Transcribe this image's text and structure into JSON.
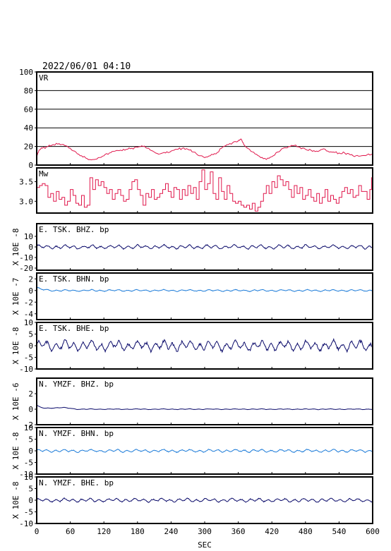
{
  "title": "2022/06/01  04:10",
  "colors": {
    "vr": "#e0184c",
    "mw": "#e0184c",
    "dark": "#0a0a6a",
    "light": "#1a7ad8"
  },
  "chart_data": {
    "type": "line",
    "xlabel": "SEC",
    "xlim": [
      0,
      600
    ],
    "xticks": [
      "0",
      "60",
      "120",
      "180",
      "240",
      "300",
      "360",
      "420",
      "480",
      "540",
      "600"
    ],
    "panels": [
      {
        "name": "VR",
        "label": "VR",
        "ylim": [
          0,
          100
        ],
        "grid": true,
        "yticks": [
          "0",
          "20",
          "40",
          "60",
          "80",
          "100"
        ],
        "ytickvals": [
          0,
          20,
          40,
          60,
          80,
          100
        ],
        "scale_label": "",
        "color": "vr",
        "x": [
          0,
          4,
          10,
          20,
          30,
          40,
          50,
          60,
          70,
          80,
          90,
          100,
          110,
          120,
          130,
          140,
          150,
          160,
          170,
          180,
          190,
          200,
          210,
          220,
          230,
          240,
          250,
          260,
          270,
          280,
          290,
          300,
          310,
          320,
          330,
          340,
          350,
          360,
          365,
          370,
          380,
          390,
          400,
          410,
          420,
          430,
          440,
          450,
          460,
          470,
          480,
          490,
          500,
          510,
          520,
          530,
          540,
          550,
          560,
          570,
          580,
          590,
          600
        ],
        "values": [
          10,
          16,
          18,
          20,
          22,
          23,
          21,
          18,
          14,
          10,
          7,
          6,
          8,
          10,
          13,
          15,
          16,
          17,
          18,
          19,
          20,
          18,
          14,
          12,
          13,
          15,
          17,
          18,
          17,
          14,
          10,
          8,
          10,
          12,
          18,
          22,
          24,
          26,
          28,
          22,
          17,
          12,
          8,
          6,
          9,
          14,
          18,
          20,
          21,
          19,
          17,
          16,
          15,
          17,
          15,
          14,
          13,
          13,
          11,
          10,
          10,
          11,
          12
        ]
      },
      {
        "name": "Mw",
        "label": "Mw",
        "ylim": [
          2.7,
          3.85
        ],
        "grid": false,
        "yticks": [
          "3.5",
          "3.0"
        ],
        "ytickvals": [
          3.5,
          3.0
        ],
        "scale_label": "",
        "color": "mw",
        "x": [
          0,
          5,
          10,
          15,
          20,
          25,
          30,
          35,
          40,
          45,
          50,
          55,
          60,
          65,
          70,
          75,
          80,
          85,
          90,
          95,
          100,
          105,
          110,
          115,
          120,
          125,
          130,
          135,
          140,
          145,
          150,
          155,
          160,
          165,
          170,
          175,
          180,
          185,
          190,
          195,
          200,
          205,
          210,
          215,
          220,
          225,
          230,
          235,
          240,
          245,
          250,
          255,
          260,
          265,
          270,
          275,
          280,
          285,
          290,
          295,
          300,
          305,
          310,
          315,
          320,
          325,
          330,
          335,
          340,
          345,
          350,
          355,
          360,
          365,
          370,
          375,
          380,
          385,
          390,
          395,
          400,
          405,
          410,
          415,
          420,
          425,
          430,
          435,
          440,
          445,
          450,
          455,
          460,
          465,
          470,
          475,
          480,
          485,
          490,
          495,
          500,
          505,
          510,
          515,
          520,
          525,
          530,
          535,
          540,
          545,
          550,
          555,
          560,
          565,
          570,
          575,
          580,
          590,
          595,
          598,
          600
        ],
        "values": [
          3.35,
          3.4,
          3.45,
          3.4,
          3.1,
          3.2,
          3.0,
          3.25,
          3.05,
          3.1,
          2.9,
          3.0,
          3.3,
          3.15,
          2.95,
          2.9,
          3.15,
          2.85,
          2.9,
          3.6,
          3.3,
          3.55,
          3.4,
          3.5,
          3.35,
          3.2,
          3.3,
          3.05,
          3.2,
          3.3,
          3.15,
          3.0,
          3.05,
          3.3,
          3.5,
          3.55,
          3.3,
          3.15,
          2.9,
          3.2,
          3.1,
          3.3,
          3.05,
          3.1,
          3.2,
          3.3,
          3.45,
          3.25,
          3.1,
          3.35,
          3.3,
          3.05,
          3.3,
          3.15,
          3.4,
          3.2,
          3.35,
          3.05,
          3.5,
          3.8,
          3.3,
          3.45,
          3.75,
          3.2,
          3.05,
          3.6,
          3.25,
          3.05,
          3.4,
          3.2,
          3.0,
          2.95,
          3.0,
          2.9,
          2.85,
          2.9,
          2.8,
          2.95,
          2.75,
          2.85,
          3.0,
          3.2,
          3.4,
          3.2,
          3.5,
          3.35,
          3.65,
          3.55,
          3.4,
          3.5,
          3.3,
          3.1,
          3.4,
          3.2,
          3.35,
          3.05,
          3.15,
          3.3,
          3.1,
          3.0,
          3.2,
          2.95,
          3.1,
          3.3,
          3.0,
          3.15,
          3.05,
          2.95,
          3.1,
          3.25,
          3.35,
          3.2,
          3.3,
          3.1,
          3.15,
          3.4,
          3.25,
          3.05,
          3.3,
          3.6,
          3.4
        ]
      },
      {
        "name": "E.TSK.BHZ.bp",
        "label": "E. TSK. BHZ. bp",
        "ylim": [
          -22,
          22
        ],
        "grid": false,
        "yticks": [
          "10",
          "0",
          "-10",
          "-20"
        ],
        "ytickvals": [
          10,
          0,
          -10,
          -20
        ],
        "scale_label": "X 10E -8",
        "color": "dark",
        "amplitude": 1.2,
        "seed": 3
      },
      {
        "name": "E.TSK.BHN.bp",
        "label": "E. TSK. BHN. bp",
        "ylim": [
          -5,
          3
        ],
        "grid": false,
        "yticks": [
          "2",
          "0",
          "-2",
          "-4"
        ],
        "ytickvals": [
          2,
          0,
          -2,
          -4
        ],
        "scale_label": "X 10E -7",
        "color": "light",
        "amplitude": 0.1,
        "seed": 7,
        "onset": 0.5
      },
      {
        "name": "E.TSK.BHE.bp",
        "label": "E. TSK. BHE. bp",
        "ylim": [
          -10,
          10
        ],
        "grid": false,
        "yticks": [
          "10",
          "5",
          "0",
          "-5",
          "-10"
        ],
        "ytickvals": [
          10,
          5,
          0,
          -5,
          -10
        ],
        "scale_label": "X 10E -8",
        "color": "dark",
        "amplitude": 1.4,
        "seed": 11
      },
      {
        "name": "N.YMZF.BHZ.bp",
        "label": "N. YMZF. BHZ. bp",
        "ylim": [
          -2,
          4
        ],
        "grid": false,
        "yticks": [
          "2",
          "0",
          "-2"
        ],
        "ytickvals": [
          2,
          0,
          -2
        ],
        "scale_label": "X 10E -6",
        "color": "dark",
        "amplitude": 0.03,
        "seed": 17,
        "onset": 0.5,
        "bump": 0.2
      },
      {
        "name": "N.YMZF.BHN.bp",
        "label": "N. YMZF. BHN. bp",
        "ylim": [
          -10,
          10
        ],
        "grid": false,
        "yticks": [
          "10",
          "5",
          "0",
          "-5",
          "-10"
        ],
        "ytickvals": [
          10,
          5,
          0,
          -5,
          -10
        ],
        "scale_label": "X 10E -8",
        "color": "light",
        "amplitude": 0.4,
        "seed": 23
      },
      {
        "name": "N.YMZF.BHE.bp",
        "label": "N. YMZF. BHE. bp",
        "ylim": [
          -10,
          10
        ],
        "grid": false,
        "yticks": [
          "10",
          "5",
          "0",
          "-5",
          "-10"
        ],
        "ytickvals": [
          10,
          5,
          0,
          -5,
          -10
        ],
        "scale_label": "X 10E -8",
        "color": "dark",
        "amplitude": 0.5,
        "seed": 29
      }
    ]
  }
}
